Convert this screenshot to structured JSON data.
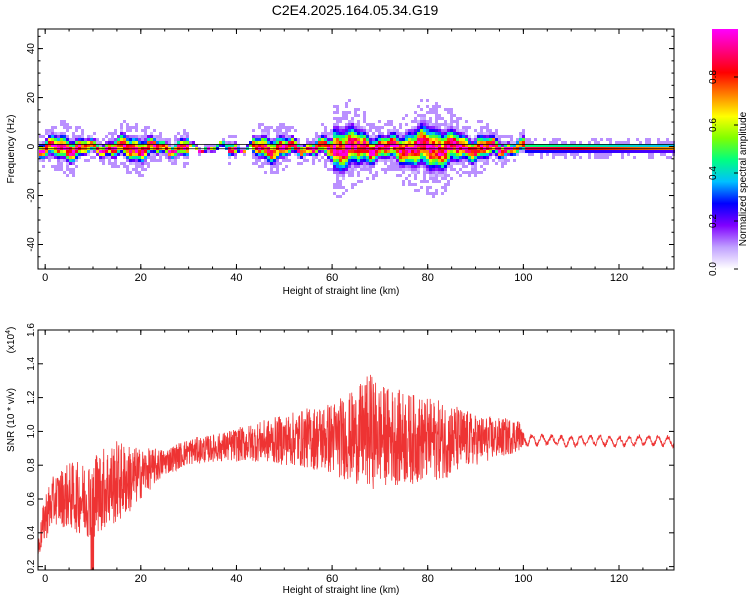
{
  "title": "C2E4.2025.164.05.34.G19",
  "colors": {
    "snr_line": "#ee3333",
    "frame": "#000000"
  },
  "chart_data": [
    {
      "type": "heatmap",
      "title": "C2E4.2025.164.05.34.G19",
      "xlabel": "Height of straight line (km)",
      "ylabel": "Frequency (Hz)",
      "xlim": [
        -1.5,
        131.5
      ],
      "ylim": [
        -50,
        48
      ],
      "x_ticks": [
        0,
        20,
        40,
        60,
        80,
        100,
        120
      ],
      "y_ticks": [
        40,
        20,
        0,
        -20,
        -40
      ],
      "colorbar": {
        "label": "Normalized spectral amplitude",
        "range": [
          0,
          1
        ],
        "ticks": [
          "0.0",
          "0.2",
          "0.4",
          "0.6",
          "0.8"
        ],
        "colormap": [
          "#ffffff",
          "#c0a0ff",
          "#8000ff",
          "#0000ff",
          "#00c0ff",
          "#00ff80",
          "#80ff00",
          "#ffff00",
          "#ff8000",
          "#ff0000",
          "#ff0080",
          "#ff00ff"
        ]
      },
      "description_bands": [
        {
          "x_range": [
            -1.5,
            100
          ],
          "center_freq": 0,
          "spread_hz": 5,
          "peak_amplitude": 1.0
        },
        {
          "x_range": [
            100,
            131.5
          ],
          "center_freq": 0,
          "spread_hz": 2,
          "peak_amplitude": 0.9
        }
      ]
    },
    {
      "type": "line",
      "xlabel": "Height of straight line (km)",
      "ylabel": "SNR (10 * v/v)",
      "y_scale_label": "(x10",
      "y_scale_exp": "4",
      "y_scale_close": ")",
      "xlim": [
        -1.5,
        131.5
      ],
      "ylim": [
        0.18,
        1.6
      ],
      "x_ticks": [
        0,
        20,
        40,
        60,
        80,
        100,
        120
      ],
      "y_ticks": [
        "0.2",
        "0.4",
        "0.6",
        "0.8",
        "1.0",
        "1.2",
        "1.4",
        "1.6"
      ],
      "series": [
        {
          "x": [
            -1.5,
            0,
            2,
            5,
            8,
            10,
            12,
            15,
            18,
            20,
            25,
            30,
            35,
            40,
            45,
            50,
            55,
            60,
            65,
            68,
            70,
            75,
            80,
            85,
            90,
            95,
            99,
            100,
            105,
            110,
            115,
            120,
            125,
            131.5
          ],
          "y": [
            0.3,
            0.5,
            0.6,
            0.62,
            0.6,
            0.62,
            0.66,
            0.7,
            0.72,
            0.75,
            0.82,
            0.88,
            0.9,
            0.92,
            0.94,
            0.95,
            0.96,
            0.96,
            0.97,
            1.0,
            0.98,
            0.96,
            0.95,
            0.95,
            0.95,
            0.96,
            0.98,
            0.95,
            0.95,
            0.94,
            0.95,
            0.94,
            0.95,
            0.94
          ],
          "noise_amplitude": [
            0.05,
            0.15,
            0.15,
            0.2,
            0.22,
            0.25,
            0.25,
            0.25,
            0.2,
            0.15,
            0.08,
            0.08,
            0.08,
            0.1,
            0.12,
            0.15,
            0.18,
            0.22,
            0.28,
            0.35,
            0.3,
            0.28,
            0.25,
            0.22,
            0.15,
            0.12,
            0.1,
            0.03,
            0.025,
            0.025,
            0.025,
            0.025,
            0.025,
            0.025
          ]
        }
      ]
    }
  ]
}
